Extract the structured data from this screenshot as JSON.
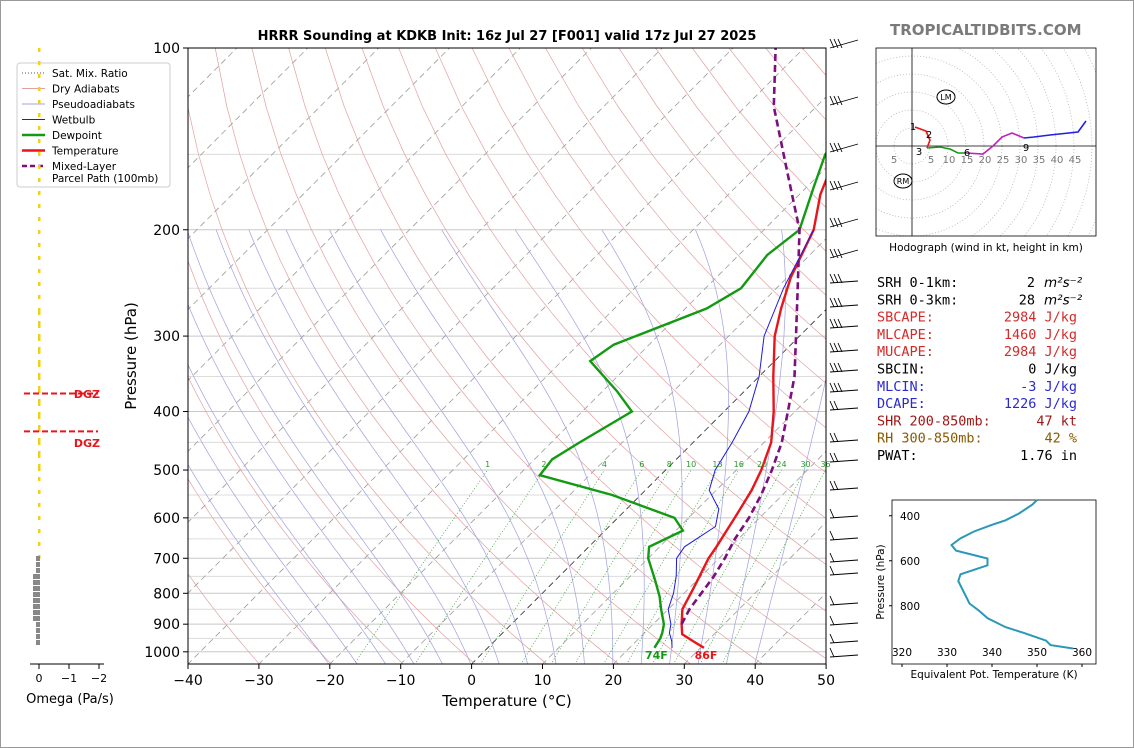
{
  "brand": "TROPICALTIDBITS.COM",
  "title": "HRRR Sounding at KDKB Init: 16z Jul 27 [F001] valid 17z Jul 27 2025",
  "chart_data": [
    {
      "type": "line",
      "subtype": "skew-T log-P",
      "ylabel": "Pressure (hPa)",
      "xlabel": "Temperature (°C)",
      "xlim": [
        -40,
        50
      ],
      "ylim": [
        1050,
        100
      ],
      "x_ticks": [
        "−40",
        "−30",
        "−20",
        "−10",
        "0",
        "10",
        "20",
        "30",
        "40",
        "50"
      ],
      "y_ticks": [
        100,
        200,
        300,
        400,
        500,
        600,
        700,
        800,
        900,
        1000
      ],
      "legend_position": "top-left",
      "legend": [
        "Sat. Mix. Ratio",
        "Dry Adiabats",
        "Pseudoadiabats",
        "Wetbulb",
        "Dewpoint",
        "Temperature",
        "Mixed-Layer\nParcel Path (100mb)"
      ],
      "mixing_ratio_labels": [
        "1",
        "2",
        "4",
        "6",
        "8",
        "10",
        "13",
        "16",
        "20",
        "24",
        "30",
        "36"
      ],
      "surface_labels": {
        "temperature": "86F",
        "dewpoint": "74F"
      },
      "colors": {
        "temperature": "#e8151b",
        "dewpoint": "#139a13",
        "wetbulb": "#1a1ae0",
        "parcel": "#7b0f7b",
        "dry_adiabat": "#e3a0a0",
        "pseudoadiabat": "#a0a0e0",
        "mixing_ratio": "#2a9a2a"
      },
      "series": [
        {
          "name": "Temperature",
          "points": [
            [
              30.5,
              985
            ],
            [
              28,
              960
            ],
            [
              25.5,
              935
            ],
            [
              24,
              900
            ],
            [
              22,
              850
            ],
            [
              20.5,
              780
            ],
            [
              18.5,
              700
            ],
            [
              18,
              670
            ],
            [
              16.5,
              600
            ],
            [
              15,
              540
            ],
            [
              13.5,
              500
            ],
            [
              11,
              450
            ],
            [
              7,
              400
            ],
            [
              2,
              350
            ],
            [
              -3.5,
              300
            ],
            [
              -6.5,
              270
            ],
            [
              -9.5,
              240
            ],
            [
              -13,
              200
            ],
            [
              -17,
              175
            ],
            [
              -19,
              160
            ],
            [
              -20.5,
              140
            ],
            [
              -18,
              120
            ],
            [
              -10,
              100
            ]
          ]
        },
        {
          "name": "Dewpoint",
          "points": [
            [
              23.5,
              985
            ],
            [
              23,
              950
            ],
            [
              22.5,
              930
            ],
            [
              21.5,
              900
            ],
            [
              19,
              850
            ],
            [
              17,
              810
            ],
            [
              14,
              760
            ],
            [
              10,
              700
            ],
            [
              8.5,
              670
            ],
            [
              11,
              630
            ],
            [
              8,
              600
            ],
            [
              -4,
              550
            ],
            [
              -17,
              510
            ],
            [
              -17.5,
              480
            ],
            [
              -16,
              450
            ],
            [
              -13,
              400
            ],
            [
              -18,
              370
            ],
            [
              -26,
              330
            ],
            [
              -25,
              310
            ],
            [
              -17,
              270
            ],
            [
              -15,
              250
            ],
            [
              -16,
              220
            ],
            [
              -15,
              200
            ],
            [
              -19,
              170
            ],
            [
              -22,
              150
            ],
            [
              -23,
              130
            ],
            [
              -22,
              100
            ]
          ]
        },
        {
          "name": "Wetbulb",
          "points": [
            [
              26,
              985
            ],
            [
              25,
              960
            ],
            [
              23.5,
              930
            ],
            [
              22.5,
              900
            ],
            [
              20,
              850
            ],
            [
              18.5,
              800
            ],
            [
              16.5,
              750
            ],
            [
              14,
              700
            ],
            [
              13.5,
              670
            ],
            [
              15,
              620
            ],
            [
              13,
              580
            ],
            [
              9,
              540
            ],
            [
              7,
              500
            ],
            [
              5.5,
              450
            ],
            [
              3.5,
              400
            ],
            [
              0,
              350
            ],
            [
              -5,
              300
            ],
            [
              -9,
              250
            ],
            [
              -13,
              200
            ]
          ]
        },
        {
          "name": "Mixed-Layer\nParcel Path (100mb)",
          "points": [
            [
              24,
              900
            ],
            [
              23,
              850
            ],
            [
              21.8,
              750
            ],
            [
              20.8,
              700
            ],
            [
              19.5,
              650
            ],
            [
              18.5,
              600
            ],
            [
              17,
              550
            ],
            [
              15,
              500
            ],
            [
              12.5,
              450
            ],
            [
              9,
              400
            ],
            [
              5,
              350
            ],
            [
              -0.5,
              300
            ],
            [
              -7,
              250
            ],
            [
              -15,
              200
            ],
            [
              -25,
              160
            ],
            [
              -36,
              125
            ],
            [
              -44,
              100
            ]
          ]
        }
      ],
      "omega_axis": {
        "label": "Omega (Pa/s)",
        "ticks": [
          "0",
          "−1",
          "−2"
        ],
        "dgz_label": "DGZ",
        "dgz_bounds": [
          388,
          438
        ]
      },
      "wind_barbs_present": true
    },
    {
      "type": "line",
      "subtype": "hodograph",
      "xlabel": "Hodograph (wind in kt, height in km)",
      "ring_labels": [
        "5",
        "10",
        "15",
        "20",
        "25",
        "30",
        "35",
        "40",
        "45"
      ],
      "left_label": "5",
      "height_labels": [
        "1",
        "2",
        "3",
        "6",
        "9"
      ],
      "markers": [
        "LM",
        "RM"
      ]
    },
    {
      "type": "line",
      "subtype": "theta-e profile",
      "xlabel": "Equivalent Pot. Temperature (K)",
      "ylabel": "Pressure (hPa)",
      "xlim": [
        320,
        365
      ],
      "ylim": [
        1000,
        320
      ],
      "x_ticks": [
        "320",
        "330",
        "340",
        "350",
        "360"
      ],
      "y_ticks": [
        "400",
        "600",
        "800"
      ],
      "series": [
        {
          "points": [
            [
              358,
              990
            ],
            [
              353,
              975
            ],
            [
              352,
              955
            ],
            [
              347,
              920
            ],
            [
              343,
              895
            ],
            [
              339,
              855
            ],
            [
              337,
              820
            ],
            [
              335,
              790
            ],
            [
              333,
              710
            ],
            [
              332.5,
              690
            ],
            [
              333,
              660
            ],
            [
              336,
              640
            ],
            [
              339,
              620
            ],
            [
              339,
              590
            ],
            [
              335,
              570
            ],
            [
              332,
              555
            ],
            [
              331,
              530
            ],
            [
              333,
              500
            ],
            [
              336,
              470
            ],
            [
              340,
              440
            ],
            [
              343,
              420
            ],
            [
              346,
              390
            ],
            [
              349,
              350
            ],
            [
              350,
              330
            ]
          ]
        }
      ]
    }
  ],
  "stats": [
    {
      "label": "SRH 0-1km:",
      "value": "2",
      "unit": "m²s⁻²",
      "color": "#000000"
    },
    {
      "label": "SRH 0-3km:",
      "value": "28",
      "unit": "m²s⁻²",
      "color": "#000000"
    },
    {
      "label": "SBCAPE:",
      "value": "2984 J/kg",
      "unit": "",
      "color": "#d42a2a"
    },
    {
      "label": "MLCAPE:",
      "value": "1460 J/kg",
      "unit": "",
      "color": "#d42a2a"
    },
    {
      "label": "MUCAPE:",
      "value": "2984 J/kg",
      "unit": "",
      "color": "#d42a2a"
    },
    {
      "label": "SBCIN:",
      "value": "0 J/kg",
      "unit": "",
      "color": "#000000"
    },
    {
      "label": "MLCIN:",
      "value": "-3 J/kg",
      "unit": "",
      "color": "#2a2ad4"
    },
    {
      "label": "DCAPE:",
      "value": "1226 J/kg",
      "unit": "",
      "color": "#2a2ad4"
    },
    {
      "label": "SHR 200-850mb:",
      "value": "47 kt",
      "unit": "",
      "color": "#a01818"
    },
    {
      "label": "RH 300-850mb:",
      "value": "42 %",
      "unit": "",
      "color": "#8a5a00"
    },
    {
      "label": "PWAT:",
      "value": "1.76 in",
      "unit": "",
      "color": "#000000"
    }
  ]
}
